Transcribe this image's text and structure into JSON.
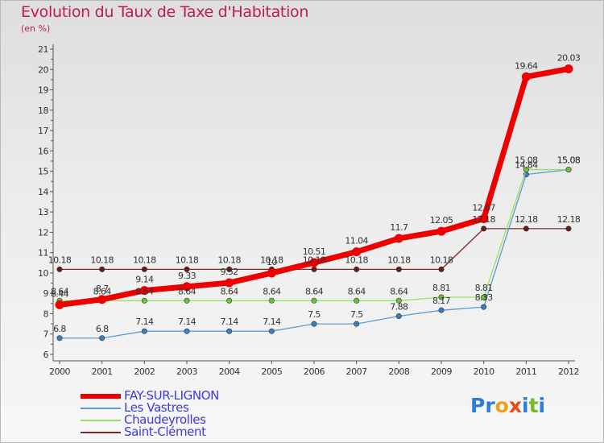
{
  "header": {
    "title": "Evolution du Taux de Taxe d'Habitation",
    "subtitle": "(en %)"
  },
  "brand": {
    "letters": [
      "P",
      "r",
      "o",
      "x",
      "i",
      "t",
      "i"
    ],
    "colors": [
      "#2a7fd4",
      "#2a7fd4",
      "#e8a020",
      "#e84a20",
      "#2a7fd4",
      "#7ab828",
      "#2a7fd4"
    ]
  },
  "chart_data": {
    "type": "line",
    "title": "Evolution du Taux de Taxe d'Habitation",
    "subtitle": "(en %)",
    "xlabel": "",
    "ylabel": "",
    "x": [
      "2000",
      "2001",
      "2002",
      "2003",
      "2004",
      "2005",
      "2006",
      "2007",
      "2008",
      "2009",
      "2010",
      "2011",
      "2012"
    ],
    "ylim": [
      6,
      21
    ],
    "yticks": [
      "6",
      "7",
      "8",
      "9",
      "10",
      "11",
      "12",
      "13",
      "14",
      "15",
      "16",
      "17",
      "18",
      "19",
      "20",
      "21"
    ],
    "grid": false,
    "legend_position": "bottom-left",
    "series": [
      {
        "name": "FAY-SUR-LIGNON",
        "color": "#ee0000",
        "values": [
          8.44,
          8.7,
          9.14,
          9.33,
          9.52,
          10,
          10.51,
          11.04,
          11.7,
          12.05,
          12.67,
          19.64,
          20.03
        ],
        "labels": [
          "8.44",
          "8.7",
          "9.14",
          "9.33",
          "9.52",
          "10",
          "10.51",
          "11.04",
          "11.7",
          "12.05",
          "12.67",
          "19.64",
          "20.03"
        ]
      },
      {
        "name": "Les Vastres",
        "color": "#5b9bd5",
        "values": [
          6.8,
          6.8,
          7.14,
          7.14,
          7.14,
          7.14,
          7.5,
          7.5,
          7.88,
          8.17,
          8.33,
          14.84,
          15.08
        ],
        "labels": [
          "6.8",
          "6.8",
          "7.14",
          "7.14",
          "7.14",
          "7.14",
          "7.5",
          "7.5",
          "7.88",
          "8.17",
          "8.33",
          "14.84",
          "15.08"
        ]
      },
      {
        "name": "Chaudeyrolles",
        "color": "#99e066",
        "values": [
          8.64,
          8.64,
          8.64,
          8.64,
          8.64,
          8.64,
          8.64,
          8.64,
          8.64,
          8.81,
          8.81,
          15.08,
          15.08
        ],
        "labels": [
          "8.64",
          "8.64",
          "8.64",
          "8.64",
          "8.64",
          "8.64",
          "8.64",
          "8.64",
          "8.64",
          "8.81",
          "8.81",
          "15.08",
          "15.08"
        ]
      },
      {
        "name": "Saint-Clément",
        "color": "#7a2a2a",
        "values": [
          10.18,
          10.18,
          10.18,
          10.18,
          10.18,
          10.18,
          10.18,
          10.18,
          10.18,
          10.18,
          12.18,
          12.18,
          12.18
        ],
        "labels": [
          "10.18",
          "10.18",
          "10.18",
          "10.18",
          "10.18",
          "10.18",
          "10.18",
          "10.18",
          "10.18",
          "10.18",
          "12.18",
          "12.18",
          "12.18"
        ]
      }
    ]
  }
}
